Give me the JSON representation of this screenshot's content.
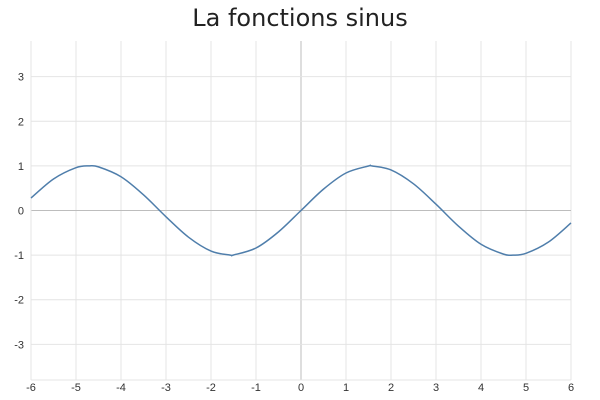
{
  "chart_data": {
    "type": "line",
    "title": "La fonctions sinus",
    "xlabel": "",
    "ylabel": "",
    "xlim": [
      -6,
      6
    ],
    "ylim": [
      -3.8,
      3.8
    ],
    "grid": true,
    "x_ticks": [
      -6,
      -5,
      -4,
      -3,
      -2,
      -1,
      0,
      1,
      2,
      3,
      4,
      5,
      6
    ],
    "y_ticks": [
      -3,
      -2,
      -1,
      0,
      1,
      2,
      3
    ],
    "colors": {
      "line": "#4f7eab",
      "grid": "#e4e4e4",
      "axis": "#bdbdbd"
    },
    "series": [
      {
        "x": [
          -6,
          -5.5,
          -5,
          -4.712,
          -4.5,
          -4,
          -3.5,
          -3,
          -2.5,
          -2,
          -1.571,
          -1.5,
          -1,
          -0.5,
          0,
          0.5,
          1,
          1.5,
          1.571,
          2,
          2.5,
          3,
          3.5,
          4,
          4.5,
          4.712,
          5,
          5.5,
          6
        ],
        "y": [
          0.279,
          0.706,
          0.959,
          1.0,
          0.978,
          0.757,
          0.351,
          -0.141,
          -0.598,
          -0.909,
          -1.0,
          -0.997,
          -0.841,
          -0.479,
          0,
          0.479,
          0.841,
          0.997,
          1.0,
          0.909,
          0.598,
          0.141,
          -0.351,
          -0.757,
          -0.978,
          -1.0,
          -0.959,
          -0.706,
          -0.279
        ]
      }
    ]
  }
}
